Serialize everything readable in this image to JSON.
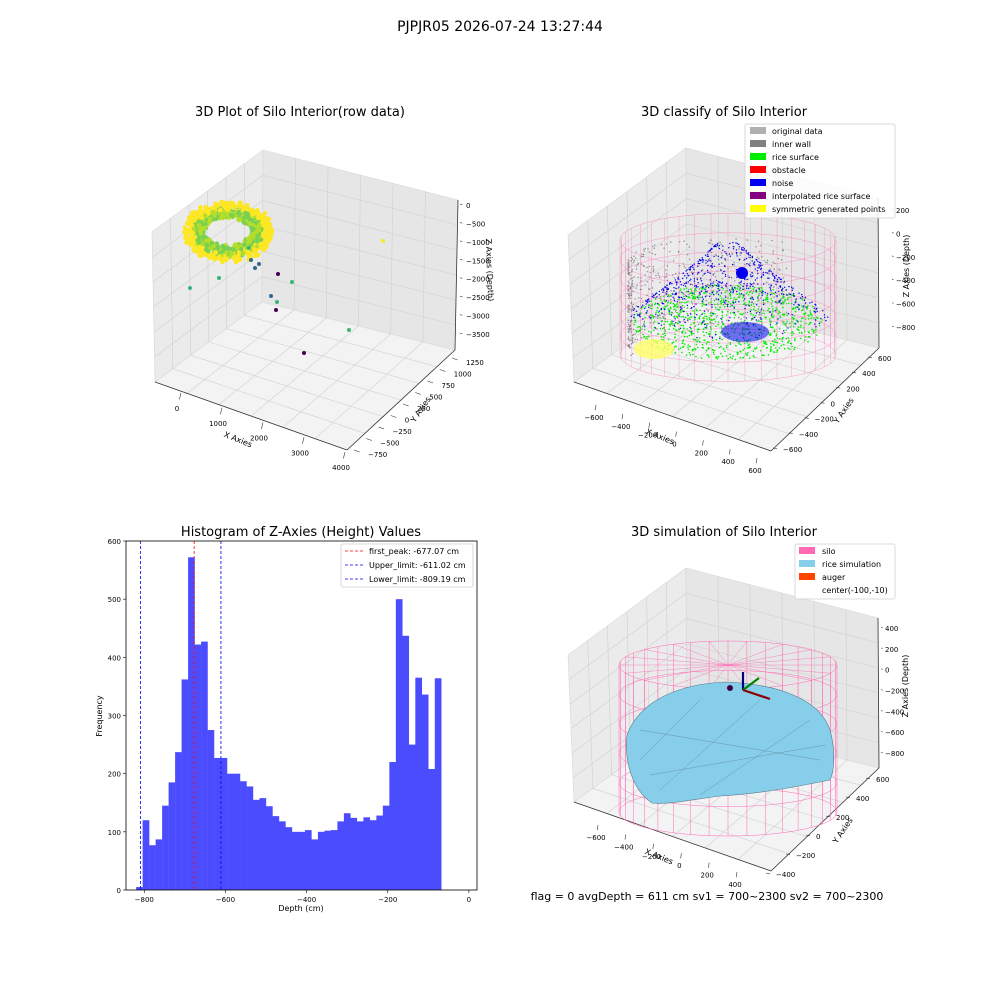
{
  "suptitle": "PJPJR05 2026-07-24 13:27:44",
  "footer": "flag = 0     avgDepth = 611 cm  sv1 = 700~2300  sv2 = 700~2300",
  "chart_data": [
    {
      "type": "scatter3d",
      "title": "3D Plot of Silo Interior(row data)",
      "xlabel": "X Axies",
      "ylabel": "Y Axies",
      "zlabel": "Z Axies (Depth)",
      "xticks": [
        "0",
        "1000",
        "2000",
        "3000",
        "4000"
      ],
      "yticks": [
        "−750",
        "−500",
        "−250",
        "0",
        "250",
        "500",
        "750",
        "1000",
        "1250"
      ],
      "zticks": [
        "0",
        "−500",
        "−1000",
        "−1500",
        "−2000",
        "−2500",
        "−3000",
        "−3500"
      ],
      "colormap": [
        "#440154",
        "#31688e",
        "#35b779",
        "#fde725"
      ]
    },
    {
      "type": "scatter3d",
      "title": "3D classify of Silo Interior",
      "xlabel": "X Axies",
      "ylabel": "Y Axies",
      "zlabel": "Z Axies (Depth)",
      "xticks": [
        "−600",
        "−400",
        "−200",
        "0",
        "200",
        "400",
        "600"
      ],
      "yticks": [
        "−600",
        "−400",
        "−200",
        "0",
        "200",
        "400",
        "600"
      ],
      "zticks": [
        "200",
        "0",
        "−200",
        "−400",
        "−600",
        "−800"
      ],
      "legend": [
        {
          "label": "original data",
          "color": "#b0b0b0"
        },
        {
          "label": "inner wall",
          "color": "#808080"
        },
        {
          "label": "rice surface",
          "color": "#00ee00"
        },
        {
          "label": "obstacle",
          "color": "#ff0000"
        },
        {
          "label": "noise",
          "color": "#0000ee"
        },
        {
          "label": "interpolated rice surface",
          "color": "#800080"
        },
        {
          "label": "symmetric generated points",
          "color": "#ffff00"
        }
      ],
      "legend_position": "upper right"
    },
    {
      "type": "bar",
      "title": "Histogram of Z-Axies (Height) Values",
      "xlabel": "Depth (cm)",
      "ylabel": "Frequency",
      "xlim": [
        -845,
        20
      ],
      "ylim": [
        0,
        600
      ],
      "xticks": [
        -800,
        -600,
        -400,
        -200,
        0
      ],
      "xtick_labels": [
        "−800",
        "−600",
        "−400",
        "−200",
        "0"
      ],
      "yticks": [
        0,
        100,
        200,
        300,
        400,
        500,
        600
      ],
      "bin_start": -820,
      "bin_width": 16,
      "values": [
        5,
        120,
        77,
        87,
        145,
        185,
        237,
        362,
        572,
        422,
        427,
        275,
        227,
        227,
        200,
        200,
        187,
        178,
        155,
        158,
        144,
        127,
        118,
        108,
        100,
        100,
        103,
        87,
        100,
        102,
        103,
        118,
        132,
        124,
        118,
        125,
        120,
        128,
        145,
        220,
        500,
        437,
        250,
        365,
        336,
        208,
        364
      ],
      "bar_color": "#4c4cff",
      "vlines": [
        {
          "label": "first_peak: -677.07 cm",
          "x": -677.07,
          "color": "#ff0000"
        },
        {
          "label": "Upper_limit: -611.02 cm",
          "x": -611.02,
          "color": "#0000ff"
        },
        {
          "label": "Lower_limit: -809.19 cm",
          "x": -809.19,
          "color": "#0000ff"
        }
      ],
      "legend_position": "upper right"
    },
    {
      "type": "surface3d",
      "title": "3D simulation of Silo Interior",
      "xlabel": "X Axies",
      "ylabel": "Y Axies",
      "zlabel": "Z Axies (Depth)",
      "xticks": [
        "−600",
        "−400",
        "−200",
        "0",
        "200",
        "400"
      ],
      "yticks": [
        "−400",
        "−200",
        "0",
        "200",
        "400",
        "600"
      ],
      "zticks": [
        "400",
        "200",
        "0",
        "−200",
        "−400",
        "−600",
        "−800"
      ],
      "legend": [
        {
          "label": "silo",
          "color": "#ff69b4"
        },
        {
          "label": "rice simulation",
          "color": "#87ceeb"
        },
        {
          "label": "auger",
          "color": "#ff4500"
        },
        {
          "label": "center(-100,-10)",
          "color": ""
        }
      ],
      "legend_position": "upper right"
    }
  ]
}
